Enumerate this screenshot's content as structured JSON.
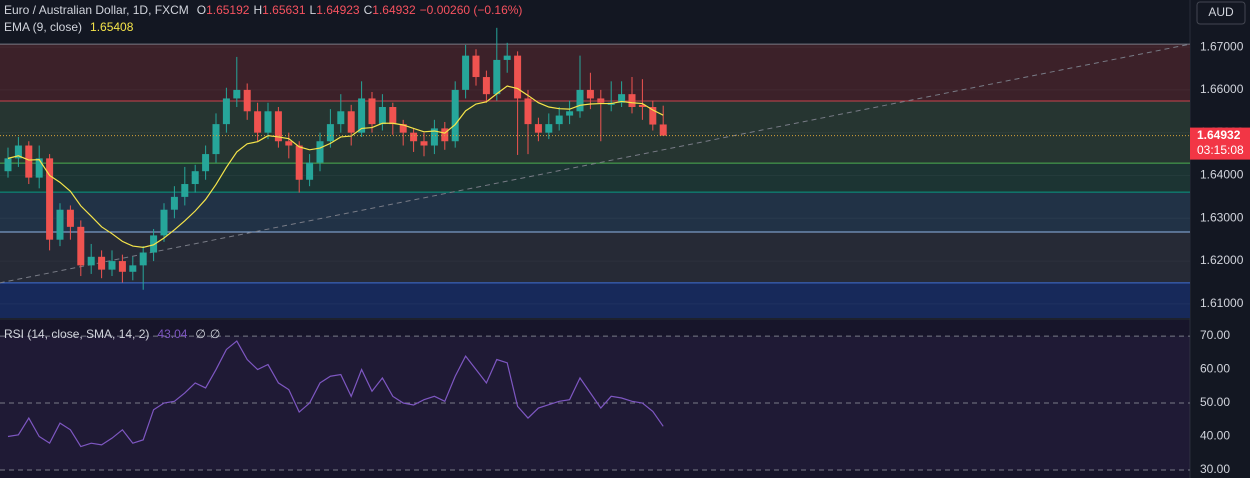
{
  "chart_data": [
    {
      "type": "candlestick",
      "title": "Euro / Australian Dollar, 1D, FXCM",
      "ohlc_prefixes": [
        "O",
        "H",
        "L",
        "C"
      ],
      "change": "−0.00260 (−0.16%)",
      "currency": "AUD",
      "countdown": "03:15:08",
      "up_color": "#26a69a",
      "down_color": "#ef5350",
      "open": [
        1.641,
        1.644,
        1.647,
        1.6395,
        1.644,
        1.625,
        1.632,
        1.628,
        1.619,
        1.621,
        1.618,
        1.62,
        1.6175,
        1.619,
        1.622,
        1.626,
        1.632,
        1.635,
        1.638,
        1.641,
        1.645,
        1.652,
        1.658,
        1.66,
        1.655,
        1.65,
        1.655,
        1.648,
        1.647,
        1.639,
        1.643,
        1.648,
        1.652,
        1.655,
        1.65,
        1.658,
        1.652,
        1.656,
        1.652,
        1.65,
        1.648,
        1.647,
        1.651,
        1.648,
        1.66,
        1.668,
        1.663,
        1.659,
        1.667,
        1.668,
        1.658,
        1.652,
        1.65,
        1.652,
        1.654,
        1.655,
        1.66,
        1.658,
        1.6565,
        1.657,
        1.659,
        1.6565,
        1.656,
        1.65192
      ],
      "high": [
        1.6465,
        1.649,
        1.648,
        1.647,
        1.645,
        1.6335,
        1.633,
        1.6295,
        1.624,
        1.6225,
        1.6225,
        1.6215,
        1.621,
        1.6235,
        1.6275,
        1.6335,
        1.6375,
        1.642,
        1.6425,
        1.647,
        1.6545,
        1.6605,
        1.6677,
        1.6615,
        1.657,
        1.657,
        1.656,
        1.65,
        1.648,
        1.645,
        1.65,
        1.6555,
        1.659,
        1.6565,
        1.662,
        1.6595,
        1.659,
        1.657,
        1.653,
        1.651,
        1.65,
        1.653,
        1.6525,
        1.662,
        1.6705,
        1.6695,
        1.6645,
        1.6745,
        1.671,
        1.669,
        1.66,
        1.6535,
        1.6545,
        1.656,
        1.6575,
        1.668,
        1.664,
        1.66,
        1.662,
        1.662,
        1.663,
        1.6625,
        1.6575,
        1.65631
      ],
      "low": [
        1.6395,
        1.642,
        1.638,
        1.637,
        1.6225,
        1.6235,
        1.625,
        1.6165,
        1.617,
        1.616,
        1.6165,
        1.615,
        1.6155,
        1.6133,
        1.62,
        1.6245,
        1.63,
        1.633,
        1.636,
        1.639,
        1.643,
        1.65,
        1.656,
        1.653,
        1.648,
        1.6485,
        1.6465,
        1.644,
        1.636,
        1.6375,
        1.641,
        1.6465,
        1.65,
        1.647,
        1.649,
        1.65,
        1.6505,
        1.6495,
        1.647,
        1.6455,
        1.6445,
        1.645,
        1.646,
        1.6465,
        1.658,
        1.661,
        1.657,
        1.6575,
        1.664,
        1.6448,
        1.645,
        1.648,
        1.6485,
        1.6505,
        1.652,
        1.6535,
        1.6555,
        1.648,
        1.655,
        1.656,
        1.6545,
        1.653,
        1.6505,
        1.64923
      ],
      "close": [
        1.644,
        1.647,
        1.6395,
        1.644,
        1.625,
        1.632,
        1.628,
        1.619,
        1.621,
        1.618,
        1.62,
        1.6175,
        1.619,
        1.622,
        1.626,
        1.632,
        1.635,
        1.638,
        1.641,
        1.645,
        1.652,
        1.658,
        1.66,
        1.655,
        1.65,
        1.655,
        1.648,
        1.647,
        1.639,
        1.643,
        1.648,
        1.652,
        1.655,
        1.65,
        1.658,
        1.652,
        1.656,
        1.652,
        1.65,
        1.648,
        1.647,
        1.651,
        1.648,
        1.66,
        1.668,
        1.663,
        1.659,
        1.667,
        1.668,
        1.658,
        1.652,
        1.65,
        1.652,
        1.654,
        1.655,
        1.66,
        1.658,
        1.657,
        1.657,
        1.659,
        1.656,
        1.656,
        1.6519,
        1.64932
      ],
      "ema": {
        "title": "EMA (9, close)",
        "color": "#f5e44a",
        "values": [
          1.644,
          1.6446,
          1.6436,
          1.6437,
          1.64,
          1.6384,
          1.6363,
          1.6329,
          1.6305,
          1.628,
          1.6264,
          1.6246,
          1.6235,
          1.6232,
          1.6238,
          1.6254,
          1.6273,
          1.6294,
          1.6317,
          1.6344,
          1.6379,
          1.6419,
          1.6455,
          1.6474,
          1.6479,
          1.6493,
          1.649,
          1.6486,
          1.6467,
          1.646,
          1.6464,
          1.6475,
          1.649,
          1.6492,
          1.651,
          1.6512,
          1.6522,
          1.6522,
          1.6518,
          1.651,
          1.6502,
          1.6504,
          1.6499,
          1.6519,
          1.6551,
          1.6567,
          1.6572,
          1.6591,
          1.6609,
          1.6603,
          1.6587,
          1.657,
          1.656,
          1.6556,
          1.6555,
          1.6564,
          1.6567,
          1.6568,
          1.6568,
          1.6573,
          1.657,
          1.6568,
          1.6553,
          1.65408
        ]
      },
      "levels": [
        1.6707,
        1.6574,
        1.6429,
        1.6361,
        1.6268,
        1.6149
      ],
      "level_colors": [
        "#787b86",
        "#c9424d",
        "#4caf50",
        "#089981",
        "#8fb4e6",
        "#3f6fd6"
      ],
      "band_colors": [
        "#3c2129",
        "#263531",
        "#1c3433",
        "#213246",
        "#262a36",
        "#17295a"
      ],
      "trendline": {
        "x": [
          -0.8,
          113.7
        ],
        "y": [
          1.6149,
          1.6707
        ],
        "color": "#787b86"
      },
      "last_price_color": "#d6a23a",
      "ylim": [
        1.6067,
        1.681
      ],
      "yticks": [
        {
          "value": 1.61,
          "label": "1.61000"
        },
        {
          "value": 1.62,
          "label": "1.62000"
        },
        {
          "value": 1.63,
          "label": "1.63000"
        },
        {
          "value": 1.64,
          "label": "1.64000"
        },
        {
          "value": 1.65,
          "label": "1.65000"
        },
        {
          "value": 1.66,
          "label": "1.66000"
        },
        {
          "value": 1.67,
          "label": "1.67000"
        }
      ]
    },
    {
      "type": "line",
      "title": "RSI (14, close, SMA, 14, 2)",
      "na_labels": [
        "∅",
        "∅"
      ],
      "color": "#7e57c2",
      "values": [
        40,
        40.5,
        45.5,
        40,
        38,
        44,
        42,
        37,
        38,
        37.5,
        39.5,
        42,
        38,
        39,
        48,
        50,
        50.5,
        53,
        56,
        54.5,
        60,
        66,
        68.5,
        63,
        60,
        61.5,
        56,
        54,
        47.3,
        50,
        56,
        58,
        58.5,
        52,
        60,
        53.5,
        57.5,
        52,
        50,
        49.4,
        51,
        52,
        50.5,
        58,
        64,
        60,
        56,
        63,
        62,
        49,
        45.5,
        48.5,
        49.5,
        50.5,
        51,
        57.5,
        53,
        48.5,
        52,
        51.5,
        50.5,
        50,
        47.5,
        43.04
      ],
      "ylim": [
        27.6,
        74.8
      ],
      "yticks": [
        {
          "value": 30,
          "label": "30.00"
        },
        {
          "value": 40,
          "label": "40.00"
        },
        {
          "value": 50,
          "label": "50.00"
        },
        {
          "value": 60,
          "label": "60.00"
        },
        {
          "value": 70,
          "label": "70.00"
        }
      ]
    }
  ]
}
